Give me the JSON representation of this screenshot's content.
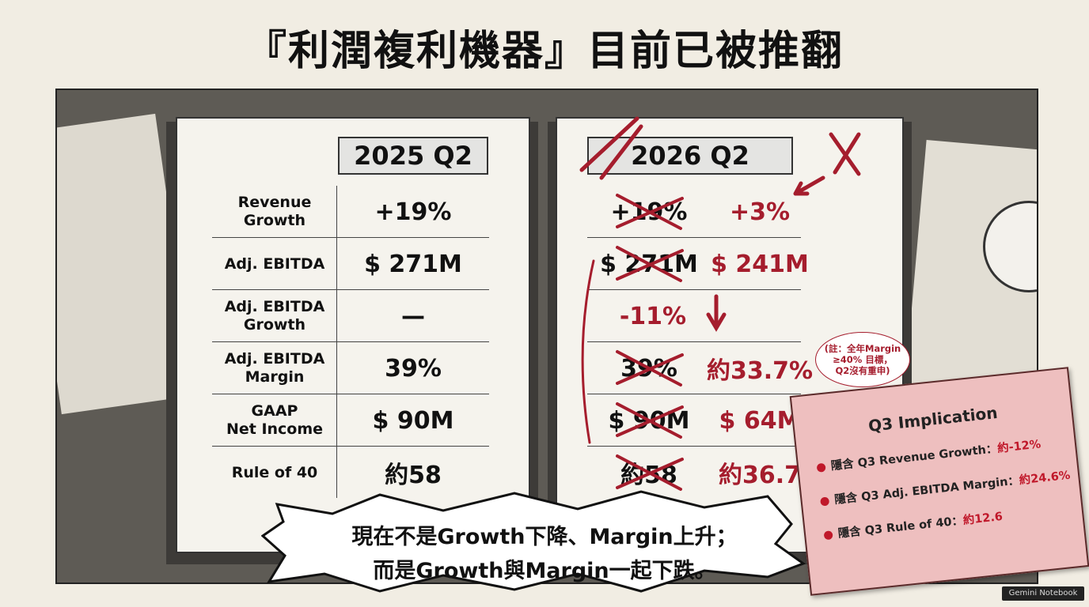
{
  "title": "『利潤複利機器』目前已被推翻",
  "left_table": {
    "header": "2025 Q2"
  },
  "right_table": {
    "header": "2026 Q2"
  },
  "rows": [
    {
      "label": "Revenue\nGrowth",
      "q2_2025": "+19%",
      "q2_2026_old": "+19%",
      "q2_2026_new": "+3%"
    },
    {
      "label": "Adj. EBITDA",
      "q2_2025": "$ 271M",
      "q2_2026_old": "$ 271M",
      "q2_2026_new": "$ 241M"
    },
    {
      "label": "Adj. EBITDA\nGrowth",
      "q2_2025": "—",
      "q2_2026_new": "-11%"
    },
    {
      "label": "Adj. EBITDA\nMargin",
      "q2_2025": "39%",
      "q2_2026_old": "39%",
      "q2_2026_new": "約33.7%"
    },
    {
      "label": "GAAP\nNet Income",
      "q2_2025": "$ 90M",
      "q2_2026_old": "$ 90M",
      "q2_2026_new": "$ 64M"
    },
    {
      "label": "Rule of 40",
      "q2_2025": "約58",
      "q2_2026_old": "約58",
      "q2_2026_new": "約36.7"
    }
  ],
  "note": "(註：全年Margin\n≥40% 目標，\nQ2沒有重申)",
  "callout": {
    "lines": [
      "現在不是Growth下降、Margin上升；",
      "而是Growth與Margin一起下跌。"
    ]
  },
  "implication": {
    "title": "Q3 Implication",
    "items": [
      {
        "label": "隱含 Q3 Revenue Growth：",
        "value": "約-12%"
      },
      {
        "label": "隱含 Q3 Adj. EBITDA Margin：",
        "value": "約24.6%"
      },
      {
        "label": "隱含 Q3 Rule of 40：",
        "value": "約12.6"
      }
    ]
  },
  "watermark": "Gemini Notebook"
}
